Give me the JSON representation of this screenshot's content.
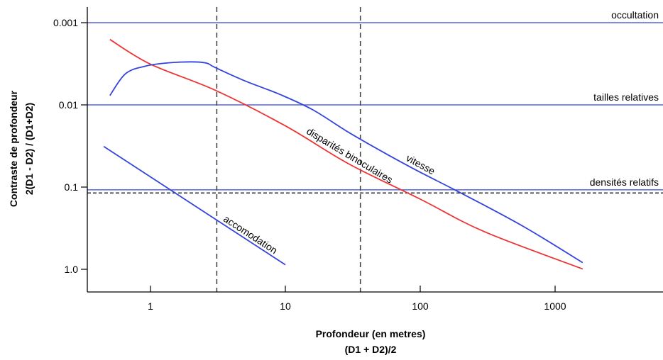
{
  "chart_data": {
    "type": "line",
    "xlabel": [
      "Profondeur (en metres)",
      "(D1 + D2)/2"
    ],
    "ylabel": [
      "Contraste de profondeur",
      "2(D1 - D2) / (D1+D2)"
    ],
    "x_scale": "log",
    "y_scale": "log",
    "y_inverted": true,
    "xlim": [
      0.35,
      6000
    ],
    "ylim": [
      0.0006,
      2.0
    ],
    "x_ticks": [
      {
        "value": 1,
        "label": "1"
      },
      {
        "value": 10,
        "label": "10"
      },
      {
        "value": 100,
        "label": "100"
      },
      {
        "value": 1000,
        "label": "1000"
      }
    ],
    "y_ticks": [
      {
        "value": 0.001,
        "label": "0.001"
      },
      {
        "value": 0.01,
        "label": "0.01"
      },
      {
        "value": 0.1,
        "label": "0.1"
      },
      {
        "value": 1.0,
        "label": "1.0"
      }
    ],
    "reference_lines": [
      {
        "label": "occultation",
        "y": 0.001,
        "color": "#3344dd",
        "style": "solid"
      },
      {
        "label": "tailles relatives",
        "y": 0.01,
        "color": "#3344dd",
        "style": "solid"
      },
      {
        "label": "densités relatifs",
        "y": 0.108,
        "color": "#3344dd",
        "style": "solid"
      },
      {
        "label": "",
        "y": 0.118,
        "color": "#333333",
        "style": "dashed"
      }
    ],
    "vertical_dashed_lines": [
      {
        "x": 3.1,
        "color": "#444444"
      },
      {
        "x": 36,
        "color": "#444444"
      }
    ],
    "series": [
      {
        "name": "accomodation",
        "color": "#3344dd",
        "x": [
          0.45,
          10
        ],
        "y": [
          0.032,
          0.88
        ]
      },
      {
        "name": "disparités binoculaires",
        "color": "#ee3333",
        "x": [
          0.5,
          1.0,
          3.0,
          10,
          30,
          100,
          300,
          1600
        ],
        "y": [
          0.0016,
          0.0032,
          0.0066,
          0.018,
          0.053,
          0.14,
          0.35,
          0.99
        ]
      },
      {
        "name": "vitesse",
        "color": "#3344dd",
        "x": [
          0.5,
          0.65,
          0.9,
          1.3,
          2.0,
          2.6,
          3.0,
          5.0,
          9.0,
          16,
          30,
          60,
          100,
          220,
          600,
          1600
        ],
        "y": [
          0.0077,
          0.0042,
          0.0034,
          0.0031,
          0.003,
          0.0031,
          0.0035,
          0.0051,
          0.0074,
          0.0115,
          0.022,
          0.042,
          0.066,
          0.128,
          0.31,
          0.83
        ]
      }
    ]
  }
}
